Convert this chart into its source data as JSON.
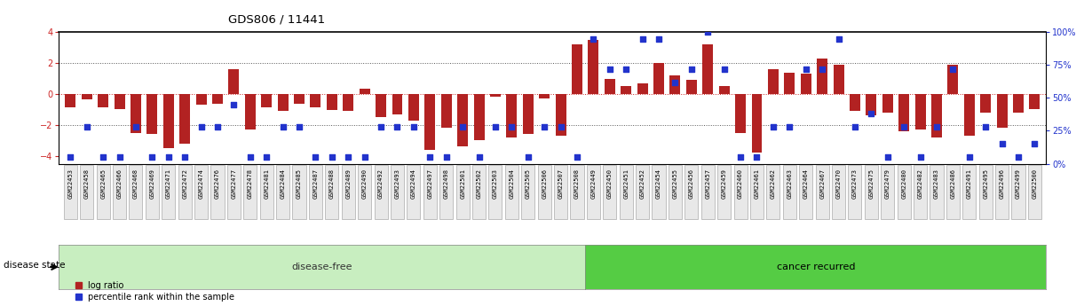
{
  "title": "GDS806 / 11441",
  "samples": [
    "GSM22453",
    "GSM22458",
    "GSM22465",
    "GSM22466",
    "GSM22468",
    "GSM22469",
    "GSM22471",
    "GSM22472",
    "GSM22474",
    "GSM22476",
    "GSM22477",
    "GSM22478",
    "GSM22481",
    "GSM22484",
    "GSM22485",
    "GSM22487",
    "GSM22488",
    "GSM22489",
    "GSM22490",
    "GSM22492",
    "GSM22493",
    "GSM22494",
    "GSM22497",
    "GSM22498",
    "GSM22501",
    "GSM22502",
    "GSM22503",
    "GSM22504",
    "GSM22505",
    "GSM22506",
    "GSM22507",
    "GSM22508",
    "GSM22449",
    "GSM22450",
    "GSM22451",
    "GSM22452",
    "GSM22454",
    "GSM22455",
    "GSM22456",
    "GSM22457",
    "GSM22459",
    "GSM22460",
    "GSM22461",
    "GSM22462",
    "GSM22463",
    "GSM22464",
    "GSM22467",
    "GSM22470",
    "GSM22473",
    "GSM22475",
    "GSM22479",
    "GSM22480",
    "GSM22482",
    "GSM22483",
    "GSM22486",
    "GSM22491",
    "GSM22495",
    "GSM22496",
    "GSM22499",
    "GSM22500"
  ],
  "log_ratio": [
    -0.85,
    -0.35,
    -0.85,
    -1.0,
    -2.5,
    -2.6,
    -3.5,
    -3.2,
    -0.7,
    -0.6,
    1.6,
    -2.3,
    -0.85,
    -1.1,
    -0.65,
    -0.85,
    -1.05,
    -1.1,
    0.35,
    -1.5,
    -1.3,
    -1.7,
    -3.6,
    -2.2,
    -3.4,
    -3.0,
    -0.15,
    -2.8,
    -2.6,
    -0.3,
    -2.7,
    3.2,
    3.5,
    1.0,
    0.5,
    0.7,
    2.0,
    1.2,
    0.9,
    3.2,
    0.5,
    -2.5,
    -3.8,
    1.6,
    1.4,
    1.3,
    2.3,
    1.9,
    -1.1,
    -1.4,
    -1.2,
    -2.4,
    -2.3,
    -2.8,
    1.9,
    -2.7,
    -1.2,
    -2.2,
    -1.2,
    -1.0
  ],
  "percentile": [
    5,
    28,
    5,
    5,
    28,
    5,
    5,
    5,
    28,
    28,
    45,
    5,
    5,
    28,
    28,
    5,
    5,
    5,
    5,
    28,
    28,
    28,
    5,
    5,
    28,
    5,
    28,
    28,
    5,
    28,
    28,
    5,
    95,
    72,
    72,
    95,
    95,
    62,
    72,
    100,
    72,
    5,
    5,
    28,
    28,
    72,
    72,
    95,
    28,
    38,
    5,
    28,
    5,
    28,
    72,
    5,
    28,
    15,
    5,
    15
  ],
  "disease_free_count": 32,
  "bar_color": "#B22222",
  "dot_color": "#2233CC",
  "ylim_left": [
    -4.5,
    4.0
  ],
  "ylim_right": [
    0,
    100
  ],
  "yticks_left": [
    -4,
    -2,
    0,
    2,
    4
  ],
  "yticks_right": [
    0,
    25,
    50,
    75,
    100
  ],
  "hlines_black": [
    -2.0,
    2.0
  ],
  "hline_red": 0.0,
  "disease_free_label": "disease-free",
  "cancer_recurred_label": "cancer recurred",
  "disease_state_label": "disease state",
  "legend_log_ratio": "log ratio",
  "legend_percentile": "percentile rank within the sample",
  "bg_disease_free": "#c8eec0",
  "bg_cancer_recurred": "#55cc44",
  "xtick_bg": "#cccccc",
  "bar_width": 0.65,
  "fig_width": 12.3,
  "fig_height": 3.45,
  "dpi": 100
}
